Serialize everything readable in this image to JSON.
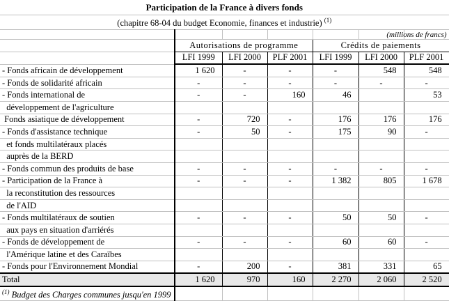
{
  "title": "Participation de la France à divers fonds",
  "subtitle": "(chapitre 68-04 du budget Economie, finances et industrie)",
  "subtitle_note": "(1)",
  "units": "(millions de francs)",
  "groups": [
    "Autorisations de programme",
    "Crédits de paiements"
  ],
  "years": [
    "LFI 1999",
    "LFI 2000",
    "PLF 2001",
    "LFI 1999",
    "LFI 2000",
    "PLF 2001"
  ],
  "rows": [
    {
      "label": "- Fonds africain de développement",
      "values": [
        "1 620",
        "-",
        "-",
        "-",
        "548",
        "548"
      ]
    },
    {
      "label": "- Fonds de solidarité africain",
      "values": [
        "-",
        "-",
        "-",
        "-",
        "-",
        "-"
      ]
    },
    {
      "label": "- Fonds international de",
      "values": [
        "-",
        "-",
        "160",
        "46",
        "",
        "53"
      ]
    },
    {
      "label": "  développement de l'agriculture",
      "values": [
        "",
        "",
        "",
        "",
        "",
        ""
      ]
    },
    {
      "label": " Fonds asiatique de développement",
      "values": [
        "-",
        "720",
        "-",
        "176",
        "176",
        "176"
      ]
    },
    {
      "label": "- Fonds d'assistance technique",
      "values": [
        "-",
        "50",
        "-",
        "175",
        "90",
        "-"
      ]
    },
    {
      "label": "  et fonds multilatéraux placés",
      "values": [
        "",
        "",
        "",
        "",
        "",
        ""
      ]
    },
    {
      "label": "  auprès de la BERD",
      "values": [
        "",
        "",
        "",
        "",
        "",
        ""
      ]
    },
    {
      "label": "- Fonds commun des produits de base",
      "values": [
        "-",
        "-",
        "-",
        "-",
        "-",
        "-"
      ]
    },
    {
      "label": "- Participation de la France à",
      "values": [
        "-",
        "-",
        "-",
        "1 382",
        "805",
        "1 678"
      ]
    },
    {
      "label": "  la reconstitution des ressources",
      "values": [
        "",
        "",
        "",
        "",
        "",
        ""
      ]
    },
    {
      "label": "  de l'AID",
      "values": [
        "",
        "",
        "",
        "",
        "",
        ""
      ]
    },
    {
      "label": "- Fonds multilatéraux de soutien",
      "values": [
        "-",
        "-",
        "-",
        "50",
        "50",
        "-"
      ]
    },
    {
      "label": "  aux pays en situation d'arriérés",
      "values": [
        "",
        "",
        "",
        "",
        "",
        ""
      ]
    },
    {
      "label": "- Fonds de développement de",
      "values": [
        "-",
        "-",
        "-",
        "60",
        "60",
        "-"
      ]
    },
    {
      "label": "  l'Amérique latine et des Caraïbes",
      "values": [
        "",
        "",
        "",
        "",
        "",
        ""
      ]
    },
    {
      "label": "- Fonds pour l'Environnement Mondial",
      "values": [
        "-",
        "200",
        "-",
        "381",
        "331",
        "65"
      ]
    }
  ],
  "total": {
    "label": "Total",
    "values": [
      "1 620",
      "970",
      "160",
      "2 270",
      "2 060",
      "2 520"
    ]
  },
  "footnote": {
    "mark": "(1)",
    "text": "Budget des Charges communes jusqu'en 1999"
  }
}
